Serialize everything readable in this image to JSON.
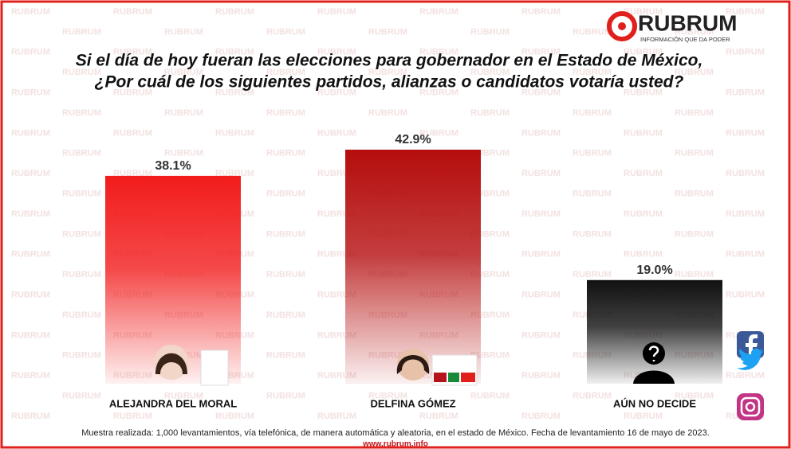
{
  "chart_data": {
    "type": "bar",
    "logo": {
      "name": "RUBRUM",
      "tagline": "INFORMACIÓN QUE DA PODER"
    },
    "title": [
      "Si el día de hoy fueran las elecciones para gobernador en el Estado de México,",
      "¿Por cuál de los siguientes partidos, alianzas o candidatos votaría usted?"
    ],
    "categories": [
      "ALEJANDRA DEL MORAL",
      "DELFINA GÓMEZ",
      "AÚN NO DECIDE"
    ],
    "values": [
      38.1,
      42.9,
      19.0
    ],
    "value_labels": [
      "38.1%",
      "42.9%",
      "19.0%"
    ],
    "colors": [
      "#f21c1c",
      "#b50d0d",
      "#111111"
    ],
    "footnote": "Muestra realizada: 1,000 levantamientos, vía telefónica, de manera automática y aleatoria, en el estado de México. Fecha de levantamiento 16  de mayo de 2023.",
    "website": "www.rubrum.info"
  }
}
